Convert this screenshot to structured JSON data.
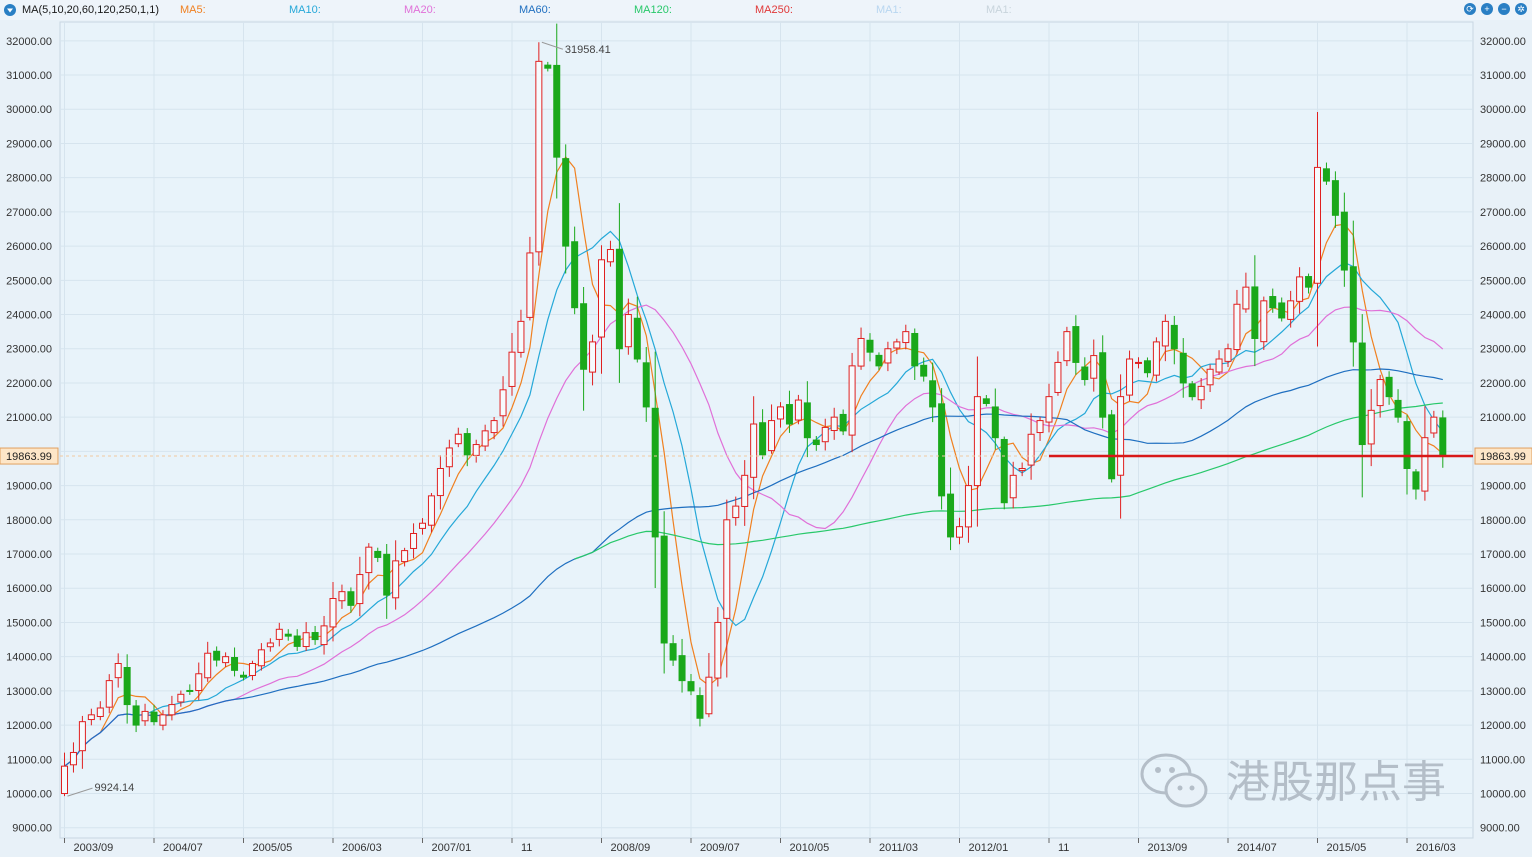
{
  "toolbar": {
    "indicator": "MA(5,10,20,60,120,250,1,1)",
    "ma_labels": [
      {
        "label": "MA5:",
        "color": "#f08020"
      },
      {
        "label": "MA10:",
        "color": "#25a8d8"
      },
      {
        "label": "MA20:",
        "color": "#e070d8"
      },
      {
        "label": "MA60:",
        "color": "#1f6fc0"
      },
      {
        "label": "MA120:",
        "color": "#28c86a"
      },
      {
        "label": "MA250:",
        "color": "#e03838"
      },
      {
        "label": "MA1:",
        "color": "#b8d6f0"
      },
      {
        "label": "MA1:",
        "color": "#c8d4dc"
      }
    ],
    "buttons": [
      {
        "icon": "refresh-icon",
        "glyph": "⟳"
      },
      {
        "icon": "zoom-in-icon",
        "glyph": "+"
      },
      {
        "icon": "zoom-out-icon",
        "glyph": "−"
      },
      {
        "icon": "settings-icon",
        "glyph": "✲"
      }
    ]
  },
  "watermark": "港股那点事",
  "chart_data": {
    "type": "candlestick",
    "period": "monthly",
    "y_ticks": [
      9000,
      10000,
      11000,
      12000,
      13000,
      14000,
      15000,
      16000,
      17000,
      18000,
      19000,
      20000,
      21000,
      22000,
      23000,
      24000,
      25000,
      26000,
      27000,
      28000,
      29000,
      30000,
      31000,
      32000
    ],
    "y_tick_labels": [
      "9000.00",
      "10000.00",
      "11000.00",
      "12000.00",
      "13000.00",
      "14000.00",
      "15000.00",
      "16000.00",
      "17000.00",
      "18000.00",
      "19000.00",
      "20000.00",
      "21000.00",
      "22000.00",
      "23000.00",
      "24000.00",
      "25000.00",
      "26000.00",
      "27000.00",
      "28000.00",
      "29000.00",
      "30000.00",
      "31000.00",
      "32000.00"
    ],
    "ylim": [
      8700,
      32550
    ],
    "x_labels": [
      {
        "label": "2003/09",
        "i": 0
      },
      {
        "label": "2004/07",
        "i": 10
      },
      {
        "label": "2005/05",
        "i": 20
      },
      {
        "label": "2006/03",
        "i": 30
      },
      {
        "label": "2007/01",
        "i": 40
      },
      {
        "label": "11",
        "i": 50
      },
      {
        "label": "2008/09",
        "i": 60
      },
      {
        "label": "2009/07",
        "i": 70
      },
      {
        "label": "2010/05",
        "i": 80
      },
      {
        "label": "2011/03",
        "i": 90
      },
      {
        "label": "2012/01",
        "i": 100
      },
      {
        "label": "11",
        "i": 110
      },
      {
        "label": "2013/09",
        "i": 120
      },
      {
        "label": "2014/07",
        "i": 130
      },
      {
        "label": "2015/05",
        "i": 140
      },
      {
        "label": "2016/03",
        "i": 150
      }
    ],
    "annotations": {
      "high_label": "31958.41",
      "low_label": "9924.14",
      "current_price": 19863.99,
      "current_label": "19863.99"
    },
    "colors": {
      "up": "#e02020",
      "down": "#1aa81a",
      "current_line": "#d81818",
      "background": "#e8f1f8"
    },
    "closes": [
      10800,
      11200,
      12100,
      12300,
      12500,
      13300,
      13800,
      12600,
      12000,
      12400,
      12100,
      12300,
      12600,
      12900,
      13000,
      13500,
      14100,
      13900,
      14000,
      13600,
      13400,
      13800,
      14200,
      14400,
      14800,
      14600,
      14300,
      14700,
      14500,
      14900,
      15700,
      15900,
      15500,
      16400,
      17200,
      16900,
      15800,
      16800,
      17100,
      17600,
      17900,
      18700,
      19500,
      20100,
      20500,
      19900,
      20200,
      20600,
      20900,
      21800,
      22900,
      23800,
      25800,
      31400,
      31200,
      28600,
      26000,
      24200,
      22400,
      23200,
      25600,
      25900,
      23000,
      24000,
      22700,
      21300,
      17500,
      14400,
      13900,
      13300,
      13000,
      12200,
      13400,
      15000,
      18000,
      18400,
      19300,
      20800,
      19900,
      20900,
      21300,
      20800,
      21500,
      20400,
      20200,
      20700,
      21000,
      20600,
      22500,
      23300,
      22900,
      22500,
      23000,
      23200,
      23500,
      22500,
      22200,
      21300,
      18700,
      17500,
      17800,
      19000,
      21600,
      21400,
      20400,
      18500,
      19300,
      19500,
      20500,
      20900,
      21600,
      22600,
      23500,
      22600,
      22100,
      22800,
      21000,
      19200,
      21600,
      22700,
      22600,
      22300,
      23200,
      23800,
      23000,
      22000,
      21600,
      21900,
      22400,
      22700,
      23000,
      24300,
      24800,
      23300,
      24400,
      24200,
      23900,
      24400,
      25100,
      24800,
      28300,
      27900,
      26900,
      25300,
      23200,
      20200,
      21200,
      22100,
      21600,
      21000,
      19500,
      18900,
      20400,
      21000,
      19864
    ],
    "ma_lines": [
      "MA5",
      "MA10",
      "MA20",
      "MA60",
      "MA120",
      "MA250"
    ]
  }
}
